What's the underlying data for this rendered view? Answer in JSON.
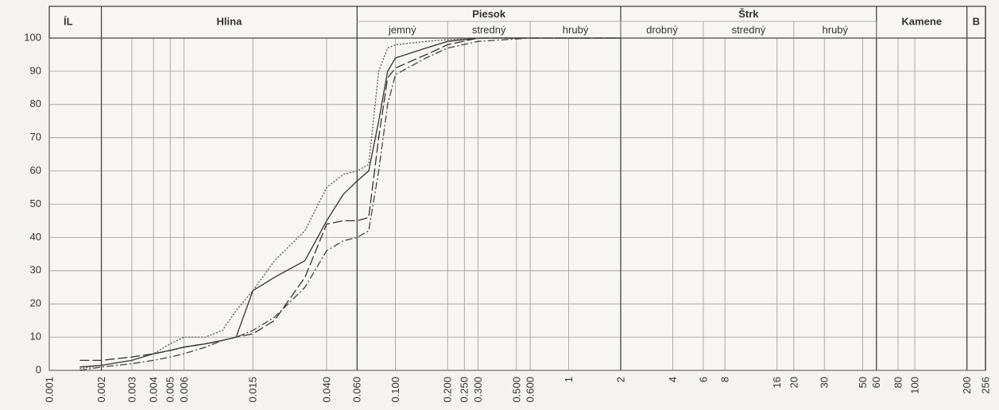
{
  "chart_data": {
    "type": "line",
    "xscale": "log",
    "xlim": [
      0.001,
      256
    ],
    "ylim": [
      0,
      100
    ],
    "yticks": [
      0,
      10,
      20,
      30,
      40,
      50,
      60,
      70,
      80,
      90,
      100
    ],
    "xticks": [
      {
        "value": 0.001,
        "label": "0.001"
      },
      {
        "value": 0.002,
        "label": "0.002"
      },
      {
        "value": 0.003,
        "label": "0.003"
      },
      {
        "value": 0.004,
        "label": "0.004"
      },
      {
        "value": 0.005,
        "label": "0.005"
      },
      {
        "value": 0.006,
        "label": "0.006"
      },
      {
        "value": 0.015,
        "label": "0.015"
      },
      {
        "value": 0.04,
        "label": "0.040"
      },
      {
        "value": 0.06,
        "label": "0.060"
      },
      {
        "value": 0.1,
        "label": "0.100"
      },
      {
        "value": 0.2,
        "label": "0.200"
      },
      {
        "value": 0.25,
        "label": "0.250"
      },
      {
        "value": 0.3,
        "label": "0.300"
      },
      {
        "value": 0.5,
        "label": "0.500"
      },
      {
        "value": 0.6,
        "label": "0.600"
      },
      1,
      2,
      4,
      6,
      8,
      16,
      20,
      30,
      50,
      60,
      80,
      100,
      200,
      256
    ],
    "grid": true,
    "header": {
      "bands": [
        "ÍL",
        "Hlina",
        "Piesok",
        "Štrk",
        "Kamene",
        "B"
      ],
      "subbands": [
        "jemný",
        "stredný",
        "hrubý",
        "drobný",
        "stredný",
        "hrubý"
      ]
    },
    "x": [
      0.0015,
      0.002,
      0.003,
      0.004,
      0.005,
      0.006,
      0.008,
      0.01,
      0.012,
      0.015,
      0.02,
      0.03,
      0.04,
      0.05,
      0.06,
      0.07,
      0.08,
      0.09,
      0.1,
      0.15,
      0.2,
      0.3,
      0.6,
      2
    ],
    "series": [
      {
        "color": "#333333",
        "style": "solid",
        "values": [
          1,
          1.5,
          3,
          5,
          6,
          7,
          8,
          9,
          10,
          24,
          28,
          33,
          45,
          53,
          57,
          60,
          75,
          90,
          94,
          97,
          99,
          100,
          100,
          100
        ]
      },
      {
        "color": "#555555",
        "style": "dotted",
        "values": [
          0.5,
          1.5,
          3,
          5,
          8,
          10,
          10,
          12,
          18,
          24,
          33,
          42,
          55,
          59,
          60,
          62,
          90,
          97,
          98,
          99,
          99.5,
          100,
          100,
          100
        ]
      },
      {
        "color": "#333333",
        "style": "dashed",
        "values": [
          3,
          3,
          4,
          5,
          6,
          7,
          8,
          9,
          10,
          11,
          15,
          28,
          44,
          45,
          45,
          46,
          70,
          88,
          91,
          95,
          98,
          100,
          100,
          100
        ]
      },
      {
        "color": "#444444",
        "style": "dashdot",
        "values": [
          0,
          1,
          2,
          3,
          4,
          5,
          7,
          9,
          10,
          12,
          16,
          25,
          36,
          39,
          40,
          42,
          60,
          80,
          89,
          94,
          97,
          99,
          100,
          100
        ]
      }
    ]
  }
}
